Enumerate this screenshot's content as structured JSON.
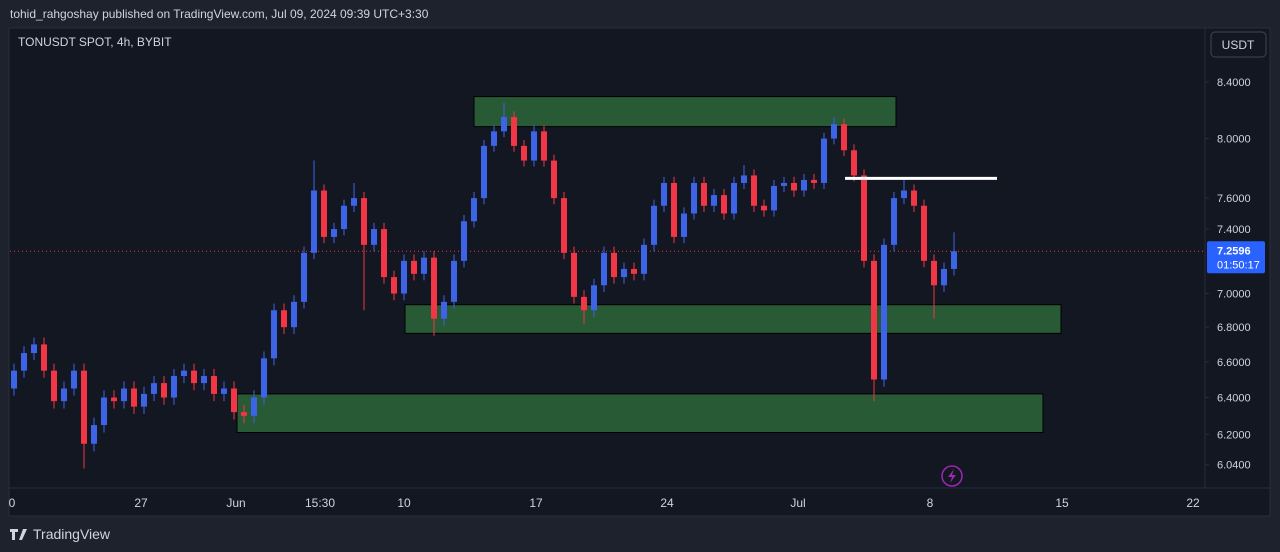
{
  "header": {
    "published": "tohid_rahgoshay published on TradingView.com, Jul 09, 2024 09:39 UTC+3:30"
  },
  "footer": {
    "brand": "TradingView"
  },
  "chart_data": {
    "type": "candlestick",
    "title": "TONUSDT SPOT, 4h, BYBIT",
    "currency": "USDT",
    "log": true,
    "grid": false,
    "up_color": "#3d63e6",
    "down_color": "#f23645",
    "zone_color": "#275a35",
    "ylim": [
      5.92,
      8.8
    ],
    "yticks": [
      {
        "value": 8.4,
        "label": "8.4000"
      },
      {
        "value": 8.0,
        "label": "8.0000"
      },
      {
        "value": 7.6,
        "label": "7.6000"
      },
      {
        "value": 7.4,
        "label": "7.4000"
      },
      {
        "value": 7.0,
        "label": "7.0000"
      },
      {
        "value": 6.8,
        "label": "6.8000"
      },
      {
        "value": 6.6,
        "label": "6.6000"
      },
      {
        "value": 6.4,
        "label": "6.4000"
      },
      {
        "value": 6.2,
        "label": "6.2000"
      },
      {
        "value": 6.04,
        "label": "6.0400"
      }
    ],
    "x_labels": [
      "0",
      "27",
      "Jun",
      "15:30",
      "10",
      "17",
      "24",
      "Jul",
      "8",
      "15",
      "22"
    ],
    "last_price": 7.2596,
    "countdown": "01:50:17",
    "zones": [
      {
        "top": 8.295,
        "bottom": 8.083
      },
      {
        "top": 6.933,
        "bottom": 6.764
      },
      {
        "top": 6.42,
        "bottom": 6.21
      }
    ],
    "level_line": 7.73,
    "candles": [
      [
        6.45,
        6.59,
        6.41,
        6.55
      ],
      [
        6.55,
        6.69,
        6.51,
        6.65
      ],
      [
        6.65,
        6.74,
        6.61,
        6.7
      ],
      [
        6.7,
        6.74,
        6.51,
        6.55
      ],
      [
        6.55,
        6.59,
        6.34,
        6.38
      ],
      [
        6.38,
        6.49,
        6.34,
        6.45
      ],
      [
        6.45,
        6.59,
        6.41,
        6.55
      ],
      [
        6.55,
        6.59,
        6.02,
        6.15
      ],
      [
        6.15,
        6.29,
        6.11,
        6.25
      ],
      [
        6.25,
        6.44,
        6.21,
        6.4
      ],
      [
        6.4,
        6.44,
        6.34,
        6.38
      ],
      [
        6.38,
        6.49,
        6.34,
        6.45
      ],
      [
        6.45,
        6.49,
        6.31,
        6.35
      ],
      [
        6.35,
        6.46,
        6.31,
        6.42
      ],
      [
        6.42,
        6.52,
        6.38,
        6.48
      ],
      [
        6.48,
        6.52,
        6.36,
        6.4
      ],
      [
        6.4,
        6.56,
        6.36,
        6.52
      ],
      [
        6.52,
        6.59,
        6.48,
        6.55
      ],
      [
        6.55,
        6.59,
        6.44,
        6.48
      ],
      [
        6.48,
        6.56,
        6.44,
        6.52
      ],
      [
        6.52,
        6.56,
        6.38,
        6.42
      ],
      [
        6.42,
        6.49,
        6.38,
        6.45
      ],
      [
        6.45,
        6.49,
        6.28,
        6.32
      ],
      [
        6.32,
        6.36,
        6.26,
        6.3
      ],
      [
        6.3,
        6.44,
        6.26,
        6.4
      ],
      [
        6.4,
        6.66,
        6.36,
        6.62
      ],
      [
        6.62,
        6.94,
        6.58,
        6.9
      ],
      [
        6.9,
        6.94,
        6.76,
        6.8
      ],
      [
        6.8,
        6.99,
        6.76,
        6.95
      ],
      [
        6.95,
        7.29,
        6.91,
        7.25
      ],
      [
        7.25,
        7.85,
        7.21,
        7.65
      ],
      [
        7.65,
        7.69,
        7.31,
        7.35
      ],
      [
        7.35,
        7.44,
        7.31,
        7.4
      ],
      [
        7.4,
        7.59,
        7.36,
        7.55
      ],
      [
        7.55,
        7.7,
        7.51,
        7.6
      ],
      [
        7.6,
        7.64,
        6.9,
        7.3
      ],
      [
        7.3,
        7.44,
        7.26,
        7.4
      ],
      [
        7.4,
        7.44,
        7.06,
        7.1
      ],
      [
        7.1,
        7.14,
        6.96,
        7.0
      ],
      [
        7.0,
        7.24,
        6.96,
        7.2
      ],
      [
        7.2,
        7.24,
        7.08,
        7.12
      ],
      [
        7.12,
        7.26,
        7.08,
        7.22
      ],
      [
        7.22,
        7.26,
        6.75,
        6.85
      ],
      [
        6.85,
        6.99,
        6.81,
        6.95
      ],
      [
        6.95,
        7.24,
        6.91,
        7.2
      ],
      [
        7.2,
        7.49,
        7.16,
        7.45
      ],
      [
        7.45,
        7.64,
        7.41,
        7.6
      ],
      [
        7.6,
        7.99,
        7.56,
        7.95
      ],
      [
        7.95,
        8.09,
        7.91,
        8.05
      ],
      [
        8.05,
        8.25,
        8.01,
        8.15
      ],
      [
        8.15,
        8.19,
        7.91,
        7.95
      ],
      [
        7.95,
        7.99,
        7.81,
        7.85
      ],
      [
        7.85,
        8.09,
        7.81,
        8.05
      ],
      [
        8.05,
        8.09,
        7.81,
        7.85
      ],
      [
        7.85,
        7.89,
        7.56,
        7.6
      ],
      [
        7.6,
        7.64,
        7.21,
        7.25
      ],
      [
        7.25,
        7.29,
        6.94,
        6.98
      ],
      [
        6.98,
        7.02,
        6.82,
        6.9
      ],
      [
        6.9,
        7.09,
        6.86,
        7.05
      ],
      [
        7.05,
        7.29,
        7.01,
        7.25
      ],
      [
        7.25,
        7.29,
        7.06,
        7.1
      ],
      [
        7.1,
        7.19,
        7.06,
        7.15
      ],
      [
        7.15,
        7.19,
        7.08,
        7.12
      ],
      [
        7.12,
        7.34,
        7.08,
        7.3
      ],
      [
        7.3,
        7.59,
        7.26,
        7.55
      ],
      [
        7.55,
        7.74,
        7.51,
        7.7
      ],
      [
        7.7,
        7.74,
        7.31,
        7.35
      ],
      [
        7.35,
        7.54,
        7.31,
        7.5
      ],
      [
        7.5,
        7.74,
        7.46,
        7.7
      ],
      [
        7.7,
        7.74,
        7.51,
        7.55
      ],
      [
        7.55,
        7.66,
        7.51,
        7.62
      ],
      [
        7.62,
        7.66,
        7.46,
        7.5
      ],
      [
        7.5,
        7.74,
        7.46,
        7.7
      ],
      [
        7.7,
        7.82,
        7.66,
        7.75
      ],
      [
        7.75,
        7.79,
        7.51,
        7.55
      ],
      [
        7.55,
        7.59,
        7.48,
        7.52
      ],
      [
        7.52,
        7.72,
        7.48,
        7.68
      ],
      [
        7.68,
        7.74,
        7.64,
        7.7
      ],
      [
        7.7,
        7.74,
        7.61,
        7.65
      ],
      [
        7.65,
        7.76,
        7.61,
        7.72
      ],
      [
        7.72,
        7.76,
        7.66,
        7.7
      ],
      [
        7.7,
        8.04,
        7.66,
        8.0
      ],
      [
        8.0,
        8.15,
        7.96,
        8.1
      ],
      [
        8.1,
        8.14,
        7.88,
        7.92
      ],
      [
        7.92,
        7.96,
        7.71,
        7.75
      ],
      [
        7.75,
        7.79,
        7.16,
        7.2
      ],
      [
        7.2,
        7.24,
        6.38,
        6.5
      ],
      [
        6.5,
        7.34,
        6.46,
        7.3
      ],
      [
        7.3,
        7.64,
        7.26,
        7.6
      ],
      [
        7.6,
        7.72,
        7.56,
        7.65
      ],
      [
        7.65,
        7.69,
        7.51,
        7.55
      ],
      [
        7.55,
        7.59,
        7.16,
        7.2
      ],
      [
        7.2,
        7.24,
        6.85,
        7.05
      ],
      [
        7.05,
        7.19,
        7.01,
        7.15
      ],
      [
        7.15,
        7.38,
        7.11,
        7.26
      ]
    ]
  }
}
